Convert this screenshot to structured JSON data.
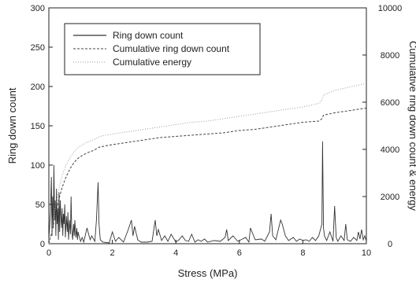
{
  "chart_data": {
    "type": "line",
    "xlabel": "Stress (MPa)",
    "ylabel": "Ring down count",
    "y2label": "Cumulative ring down count & energy",
    "xlim": [
      0,
      10
    ],
    "ylim": [
      0,
      300
    ],
    "y2lim": [
      0,
      10000
    ],
    "xticks": [
      0,
      2,
      4,
      6,
      8,
      10
    ],
    "yticks": [
      0,
      50,
      100,
      150,
      200,
      250,
      300
    ],
    "y2ticks": [
      0,
      2000,
      4000,
      6000,
      8000,
      10000
    ],
    "grid": false,
    "legend_position": "top-left",
    "series": [
      {
        "name": "Ring down count",
        "axis": "left",
        "style": "solid",
        "color": "#333333",
        "x": [
          0.0,
          0.05,
          0.08,
          0.1,
          0.12,
          0.14,
          0.16,
          0.18,
          0.2,
          0.22,
          0.24,
          0.26,
          0.28,
          0.3,
          0.32,
          0.34,
          0.36,
          0.38,
          0.4,
          0.42,
          0.44,
          0.46,
          0.48,
          0.5,
          0.52,
          0.55,
          0.58,
          0.6,
          0.62,
          0.65,
          0.68,
          0.7,
          0.72,
          0.75,
          0.78,
          0.8,
          0.82,
          0.85,
          0.88,
          0.9,
          0.92,
          0.95,
          1.0,
          1.05,
          1.1,
          1.2,
          1.3,
          1.35,
          1.45,
          1.5,
          1.55,
          1.58,
          1.62,
          1.7,
          1.9,
          2.0,
          2.1,
          2.2,
          2.35,
          2.5,
          2.6,
          2.65,
          2.7,
          2.8,
          2.9,
          3.1,
          3.25,
          3.35,
          3.4,
          3.45,
          3.55,
          3.65,
          3.75,
          3.85,
          4.0,
          4.1,
          4.2,
          4.3,
          4.4,
          4.5,
          4.6,
          4.7,
          4.8,
          4.9,
          5.0,
          5.2,
          5.4,
          5.55,
          5.6,
          5.65,
          5.8,
          5.95,
          6.05,
          6.2,
          6.3,
          6.35,
          6.5,
          6.7,
          6.8,
          6.95,
          7.0,
          7.05,
          7.15,
          7.3,
          7.35,
          7.45,
          7.55,
          7.7,
          7.8,
          7.9,
          8.0,
          8.1,
          8.2,
          8.3,
          8.4,
          8.5,
          8.6,
          8.62,
          8.65,
          8.68,
          8.75,
          8.85,
          8.95,
          9.0,
          9.05,
          9.1,
          9.2,
          9.3,
          9.35,
          9.4,
          9.5,
          9.6,
          9.7,
          9.75,
          9.8,
          9.85,
          9.9,
          9.95,
          10.0
        ],
        "y": [
          5,
          40,
          85,
          10,
          60,
          20,
          100,
          30,
          55,
          10,
          70,
          25,
          45,
          5,
          65,
          15,
          55,
          35,
          20,
          45,
          10,
          38,
          25,
          50,
          8,
          35,
          15,
          40,
          5,
          30,
          12,
          60,
          20,
          5,
          25,
          10,
          30,
          8,
          20,
          5,
          15,
          10,
          3,
          8,
          2,
          20,
          5,
          10,
          3,
          30,
          78,
          25,
          5,
          2,
          1,
          15,
          3,
          8,
          2,
          18,
          30,
          10,
          22,
          5,
          2,
          2,
          3,
          30,
          10,
          18,
          4,
          10,
          3,
          12,
          2,
          5,
          10,
          4,
          3,
          12,
          2,
          5,
          3,
          6,
          2,
          4,
          3,
          8,
          18,
          4,
          10,
          3,
          5,
          8,
          2,
          20,
          5,
          6,
          3,
          15,
          38,
          10,
          5,
          30,
          25,
          10,
          4,
          8,
          3,
          6,
          4,
          5,
          3,
          8,
          4,
          10,
          25,
          130,
          20,
          10,
          4,
          15,
          3,
          48,
          8,
          3,
          10,
          4,
          25,
          5,
          3,
          8,
          4,
          15,
          6,
          18,
          5,
          10,
          3
        ]
      },
      {
        "name": "Cumulative ring down count",
        "axis": "right",
        "style": "dashed",
        "color": "#444444",
        "x": [
          0.0,
          0.1,
          0.2,
          0.3,
          0.4,
          0.5,
          0.6,
          0.7,
          0.8,
          0.9,
          1.0,
          1.2,
          1.4,
          1.6,
          1.8,
          2.0,
          2.5,
          3.0,
          3.5,
          4.0,
          4.5,
          5.0,
          5.5,
          6.0,
          6.5,
          7.0,
          7.5,
          8.0,
          8.5,
          8.6,
          8.65,
          9.0,
          9.5,
          10.0
        ],
        "y": [
          0,
          500,
          1200,
          1800,
          2300,
          2700,
          3000,
          3250,
          3450,
          3600,
          3700,
          3850,
          3950,
          4100,
          4150,
          4200,
          4300,
          4400,
          4500,
          4550,
          4600,
          4650,
          4700,
          4800,
          4850,
          4950,
          5050,
          5150,
          5200,
          5300,
          5450,
          5550,
          5650,
          5750
        ]
      },
      {
        "name": "Cumulative energy",
        "axis": "right",
        "style": "dotted",
        "color": "#9a9a9a",
        "x": [
          0.0,
          0.1,
          0.2,
          0.3,
          0.4,
          0.5,
          0.6,
          0.7,
          0.8,
          0.9,
          1.0,
          1.2,
          1.4,
          1.6,
          1.8,
          2.0,
          2.5,
          3.0,
          3.5,
          4.0,
          4.5,
          5.0,
          5.5,
          6.0,
          6.5,
          7.0,
          7.5,
          8.0,
          8.5,
          8.6,
          8.65,
          9.0,
          9.5,
          10.0
        ],
        "y": [
          0,
          600,
          1500,
          2200,
          2800,
          3200,
          3500,
          3700,
          3900,
          4050,
          4150,
          4300,
          4400,
          4550,
          4600,
          4650,
          4750,
          4850,
          4950,
          5050,
          5150,
          5200,
          5300,
          5400,
          5500,
          5600,
          5700,
          5800,
          5950,
          6100,
          6300,
          6500,
          6650,
          6800
        ]
      }
    ]
  }
}
